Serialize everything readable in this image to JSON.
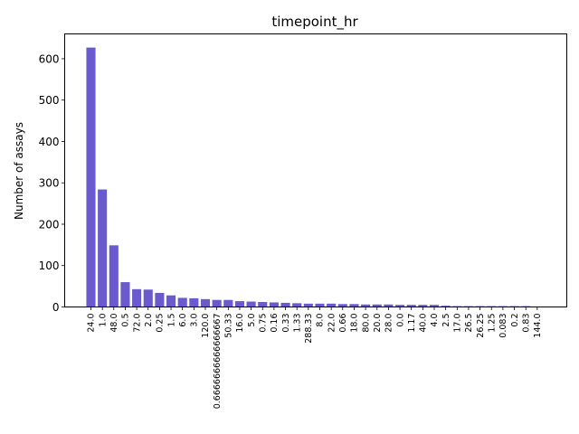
{
  "chart_data": {
    "type": "bar",
    "title": "timepoint_hr",
    "xlabel": "",
    "ylabel": "Number of assays",
    "ylim": [
      0,
      660
    ],
    "yticks": [
      0,
      100,
      200,
      300,
      400,
      500,
      600
    ],
    "bar_color": "#6a5acd",
    "grid": false,
    "categories": [
      "24.0",
      "1.0",
      "48.0",
      "0.5",
      "72.0",
      "2.0",
      "0.25",
      "1.5",
      "6.0",
      "3.0",
      "120.0",
      "0.6666666666666667",
      "50.33",
      "16.0",
      "5.0",
      "0.75",
      "0.16",
      "0.33",
      "1.33",
      "288.33",
      "8.0",
      "22.0",
      "0.66",
      "18.0",
      "80.0",
      "20.0",
      "28.0",
      "0.0",
      "1.17",
      "40.0",
      "4.0",
      "2.5",
      "17.0",
      "26.5",
      "26.25",
      "1.25",
      "0.083",
      "0.2",
      "0.83",
      "144.0"
    ],
    "values": [
      627,
      284,
      149,
      60,
      43,
      42,
      34,
      28,
      22,
      21,
      19,
      17,
      17,
      14,
      13,
      12,
      11,
      10,
      9,
      8,
      8,
      8,
      7,
      7,
      6,
      6,
      6,
      5,
      5,
      5,
      5,
      3,
      2,
      2,
      2,
      2,
      2,
      2,
      2,
      1
    ]
  }
}
